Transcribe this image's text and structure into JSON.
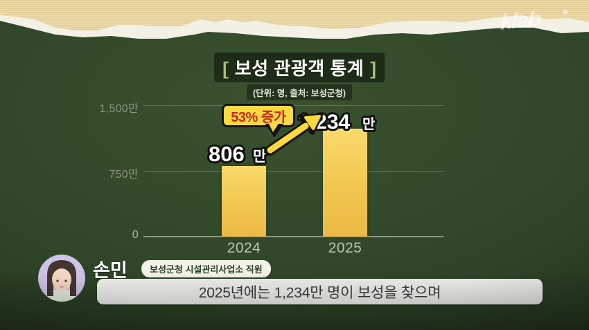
{
  "brand": {
    "logo": "klab"
  },
  "header": {
    "bracket_left": "[",
    "title": "보성 관광객 통계",
    "bracket_right": "]",
    "subtitle": "(단위: 명, 출처: 보성군청)"
  },
  "chart_data": {
    "type": "bar",
    "title": "보성 관광객 통계",
    "unit_source_note": "(단위: 명, 출처: 보성군청)",
    "categories": [
      "2024",
      "2025"
    ],
    "values_man": [
      806,
      1234
    ],
    "value_labels": [
      {
        "number": "806",
        "suffix": "만"
      },
      {
        "number": "1,234",
        "suffix": "만"
      }
    ],
    "y_ticks": [
      "1,500만",
      "750만",
      "0"
    ],
    "ylim_man": [
      0,
      1500
    ],
    "grid": true,
    "legend": false,
    "annotation": "53% 증가",
    "colors": {
      "bar": "#f1c64f",
      "annotation_bg": "#ffd942",
      "annotation_text": "#c1281c",
      "arrow": "#ffd83a",
      "background_green": "#31472a",
      "bracket_green": "#a9bd7d",
      "paper_beige": "#ecd9a9"
    }
  },
  "speaker": {
    "name": "손민",
    "role": "보성군청 시설관리사업소 직원"
  },
  "caption": {
    "text": "2025년에는 1,234만 명이 보성을 찾으며"
  }
}
